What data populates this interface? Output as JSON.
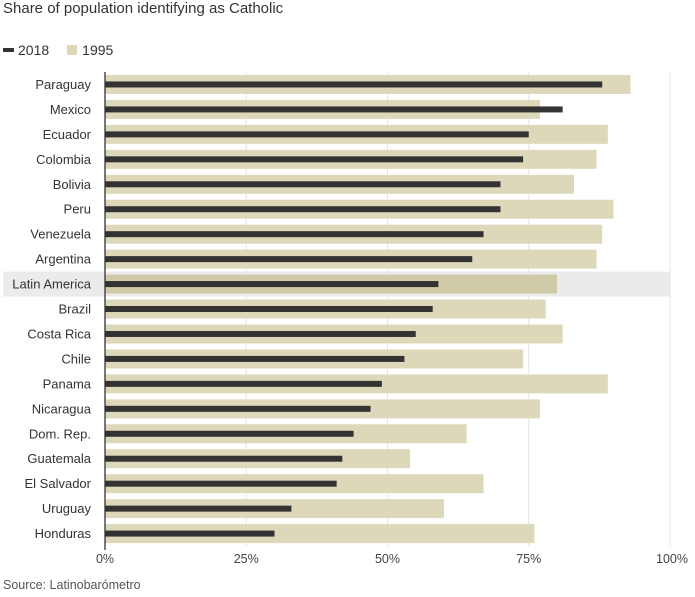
{
  "colors": {
    "series_2018": "#333333",
    "series_1995": "#dcd8b9",
    "highlight_bg": "#ebebeb",
    "highlight_bar": "#cfcaa8",
    "grid": "#e4e4e4",
    "axis": "#333333"
  },
  "chart_data": {
    "type": "bar",
    "orientation": "horizontal",
    "title": "Share of population identifying as Catholic",
    "source": "Source: Latinobarómetro",
    "xlim": [
      0,
      100
    ],
    "xticks": [
      "0%",
      "25%",
      "50%",
      "75%",
      "100%"
    ],
    "xtick_values": [
      0,
      25,
      50,
      75,
      100
    ],
    "legend": [
      "2018",
      "1995"
    ],
    "highlight": "Latin America",
    "categories": [
      "Paraguay",
      "Mexico",
      "Ecuador",
      "Colombia",
      "Bolivia",
      "Peru",
      "Venezuela",
      "Argentina",
      "Latin America",
      "Brazil",
      "Costa Rica",
      "Chile",
      "Panama",
      "Nicaragua",
      "Dom. Rep.",
      "Guatemala",
      "El Salvador",
      "Uruguay",
      "Honduras"
    ],
    "series": [
      {
        "name": "1995",
        "values": [
          93,
          77,
          89,
          87,
          83,
          90,
          88,
          87,
          80,
          78,
          81,
          74,
          89,
          77,
          64,
          54,
          67,
          60,
          76
        ]
      },
      {
        "name": "2018",
        "values": [
          88,
          81,
          75,
          74,
          70,
          70,
          67,
          65,
          59,
          58,
          55,
          53,
          49,
          47,
          44,
          42,
          41,
          33,
          30
        ]
      }
    ]
  }
}
